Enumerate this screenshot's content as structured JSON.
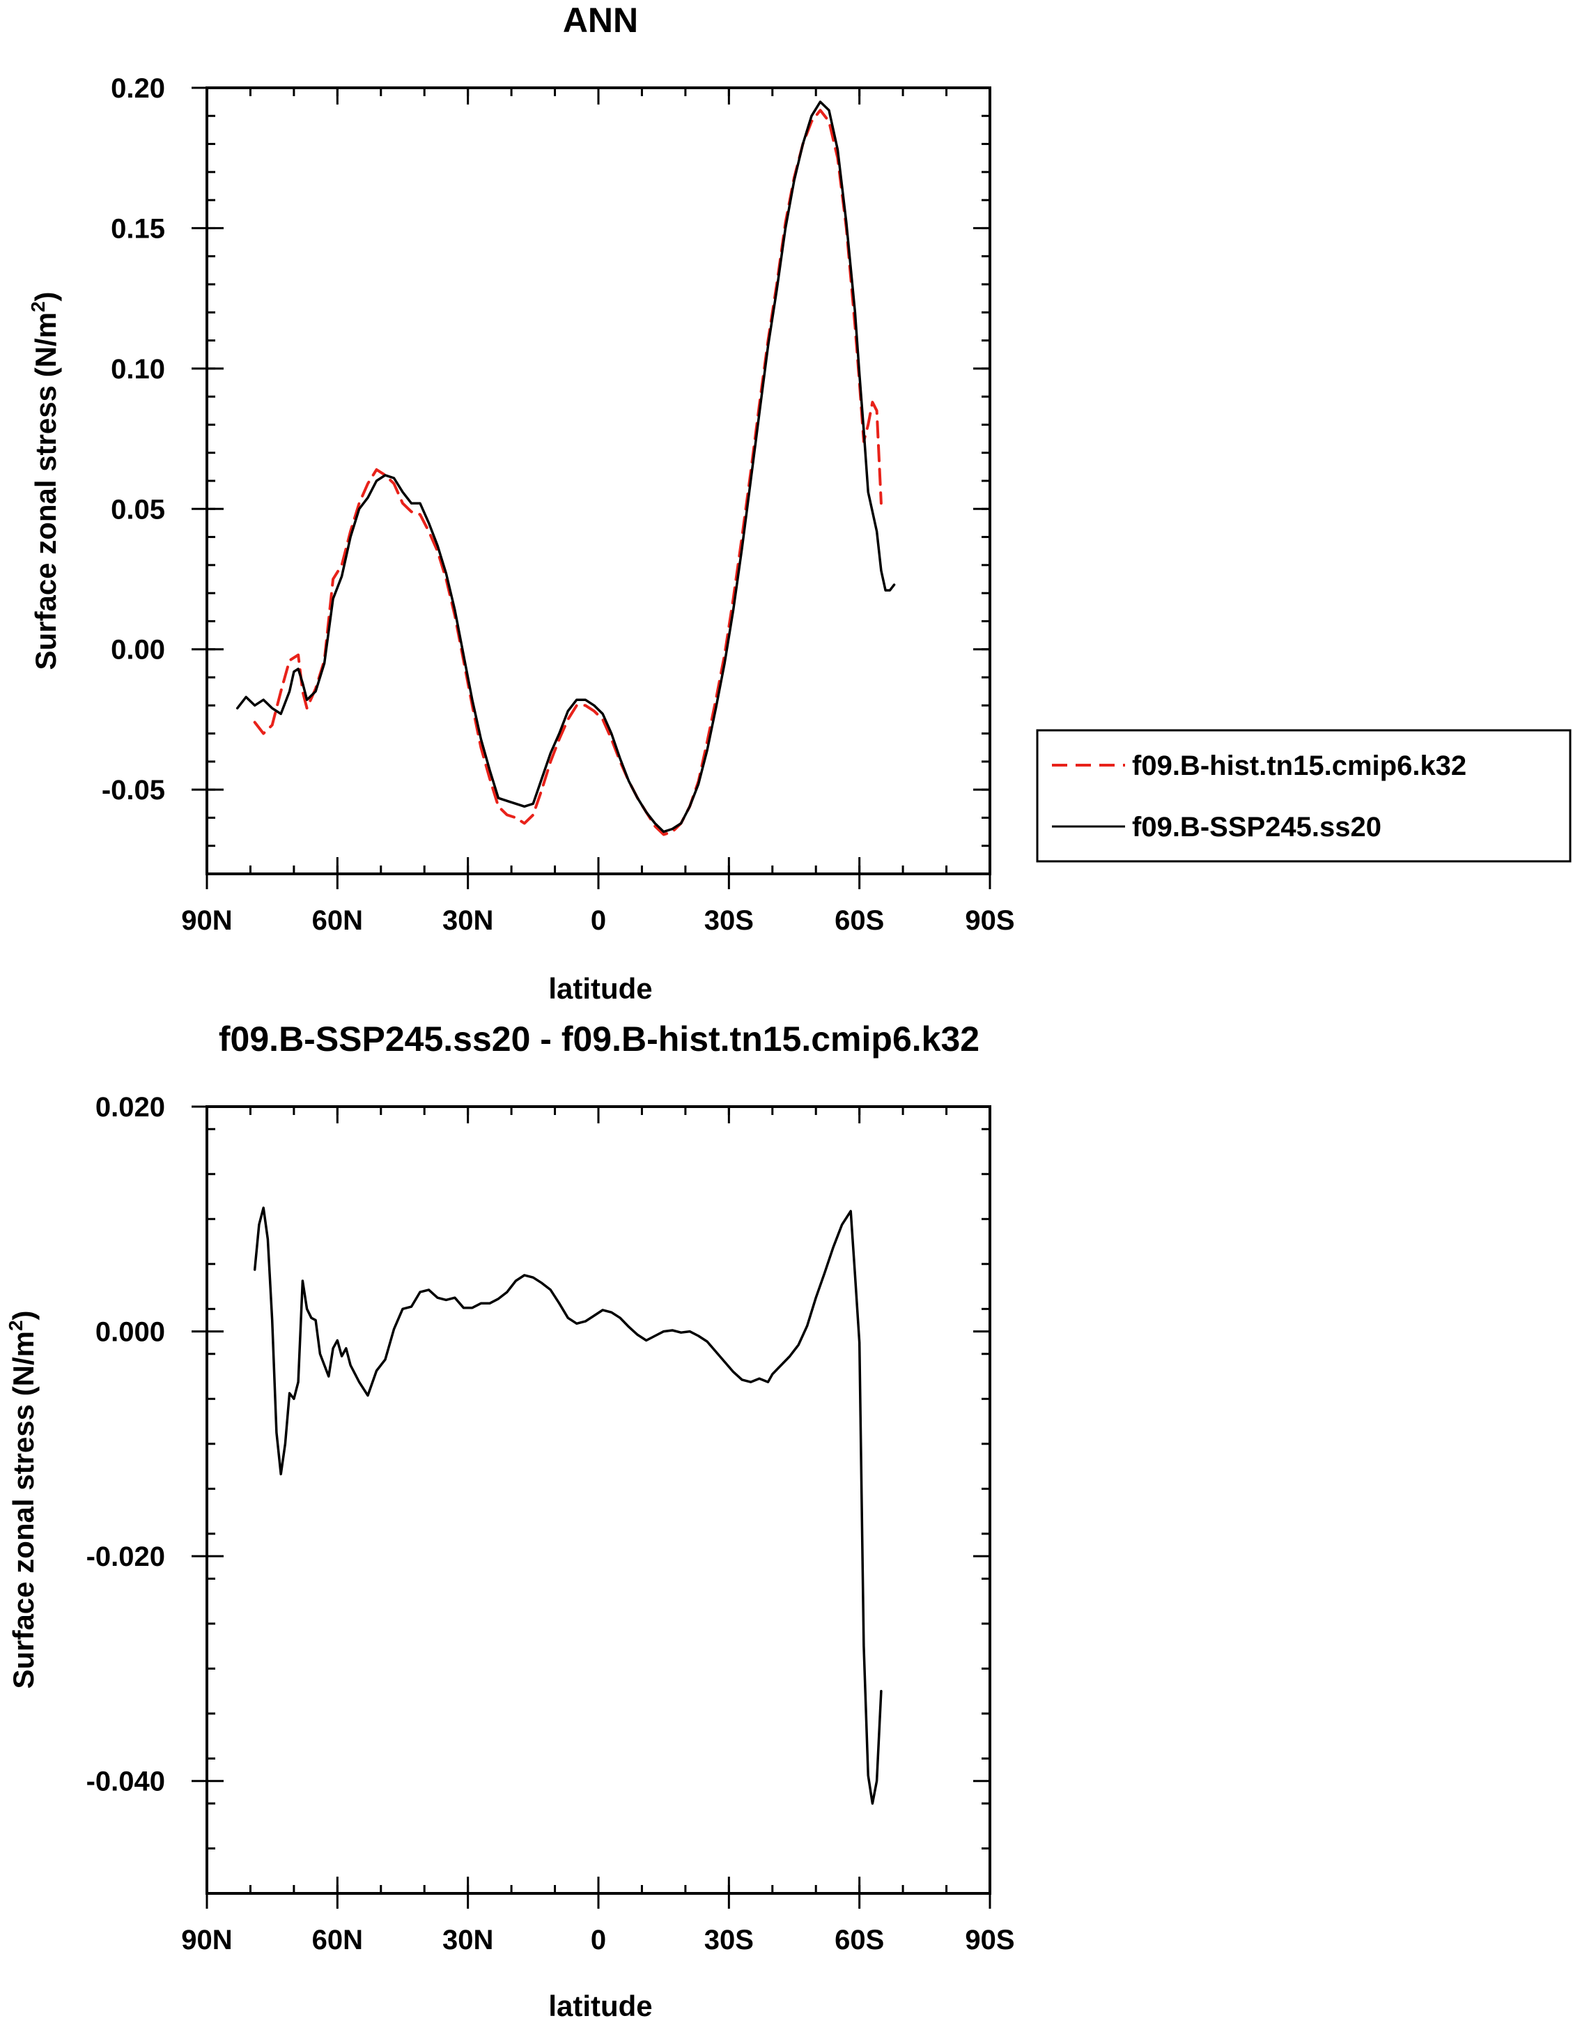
{
  "chart_data": [
    {
      "type": "line",
      "title": "ANN",
      "xlabel": "latitude",
      "ylabel": "Surface zonal stress (N/m²)",
      "ylabel_main": "Surface zonal stress (N/m",
      "ylabel_sup": "2",
      "ylabel_close": ")",
      "xlim": [
        90,
        -90
      ],
      "ylim": [
        -0.08,
        0.2
      ],
      "x_ticks": [
        90,
        60,
        30,
        0,
        -30,
        -60,
        -90
      ],
      "x_tick_labels": [
        "90N",
        "60N",
        "30N",
        "0",
        "30S",
        "60S",
        "90S"
      ],
      "y_ticks": [
        -0.05,
        0.0,
        0.05,
        0.1,
        0.15,
        0.2
      ],
      "y_tick_labels": [
        "-0.05",
        "0.00",
        "0.05",
        "0.10",
        "0.15",
        "0.20"
      ],
      "legend": [
        "f09.B-hist.tn15.cmip6.k32",
        "f09.B-SSP245.ss20"
      ],
      "series": [
        {
          "name": "f09.B-hist.tn15.cmip6.k32",
          "color": "#e8221a",
          "dash": true,
          "points": [
            [
              79,
              -0.026
            ],
            [
              77,
              -0.03
            ],
            [
              75,
              -0.027
            ],
            [
              73,
              -0.015
            ],
            [
              71,
              -0.004
            ],
            [
              69,
              -0.002
            ],
            [
              68,
              -0.015
            ],
            [
              67,
              -0.021
            ],
            [
              65,
              -0.014
            ],
            [
              63,
              -0.004
            ],
            [
              61,
              0.025
            ],
            [
              59,
              0.03
            ],
            [
              57,
              0.042
            ],
            [
              55,
              0.052
            ],
            [
              53,
              0.059
            ],
            [
              51,
              0.064
            ],
            [
              49,
              0.062
            ],
            [
              47,
              0.059
            ],
            [
              45,
              0.052
            ],
            [
              43,
              0.049
            ],
            [
              41,
              0.048
            ],
            [
              39,
              0.042
            ],
            [
              37,
              0.035
            ],
            [
              35,
              0.025
            ],
            [
              33,
              0.012
            ],
            [
              31,
              -0.004
            ],
            [
              29,
              -0.02
            ],
            [
              27,
              -0.035
            ],
            [
              25,
              -0.046
            ],
            [
              23,
              -0.056
            ],
            [
              21,
              -0.059
            ],
            [
              19,
              -0.06
            ],
            [
              17,
              -0.062
            ],
            [
              15,
              -0.059
            ],
            [
              13,
              -0.05
            ],
            [
              11,
              -0.04
            ],
            [
              9,
              -0.032
            ],
            [
              7,
              -0.025
            ],
            [
              5,
              -0.02
            ],
            [
              3,
              -0.02
            ],
            [
              1,
              -0.022
            ],
            [
              -1,
              -0.025
            ],
            [
              -3,
              -0.032
            ],
            [
              -5,
              -0.04
            ],
            [
              -7,
              -0.047
            ],
            [
              -9,
              -0.053
            ],
            [
              -11,
              -0.058
            ],
            [
              -13,
              -0.063
            ],
            [
              -15,
              -0.066
            ],
            [
              -17,
              -0.065
            ],
            [
              -19,
              -0.062
            ],
            [
              -21,
              -0.056
            ],
            [
              -23,
              -0.047
            ],
            [
              -25,
              -0.033
            ],
            [
              -27,
              -0.018
            ],
            [
              -29,
              -0.002
            ],
            [
              -31,
              0.018
            ],
            [
              -33,
              0.04
            ],
            [
              -35,
              0.063
            ],
            [
              -37,
              0.087
            ],
            [
              -39,
              0.11
            ],
            [
              -41,
              0.13
            ],
            [
              -43,
              0.152
            ],
            [
              -45,
              0.168
            ],
            [
              -47,
              0.18
            ],
            [
              -49,
              0.188
            ],
            [
              -51,
              0.192
            ],
            [
              -53,
              0.188
            ],
            [
              -55,
              0.175
            ],
            [
              -57,
              0.15
            ],
            [
              -59,
              0.115
            ],
            [
              -60,
              0.095
            ],
            [
              -61,
              0.074
            ],
            [
              -62,
              0.08
            ],
            [
              -63,
              0.088
            ],
            [
              -64,
              0.085
            ],
            [
              -65,
              0.052
            ]
          ]
        },
        {
          "name": "f09.B-SSP245.ss20",
          "color": "#000000",
          "dash": false,
          "points": [
            [
              83,
              -0.021
            ],
            [
              81,
              -0.017
            ],
            [
              79,
              -0.02
            ],
            [
              77,
              -0.018
            ],
            [
              75,
              -0.021
            ],
            [
              73,
              -0.023
            ],
            [
              71,
              -0.015
            ],
            [
              70,
              -0.008
            ],
            [
              69,
              -0.007
            ],
            [
              68,
              -0.012
            ],
            [
              67,
              -0.018
            ],
            [
              65,
              -0.015
            ],
            [
              63,
              -0.005
            ],
            [
              61,
              0.018
            ],
            [
              59,
              0.026
            ],
            [
              57,
              0.04
            ],
            [
              55,
              0.05
            ],
            [
              53,
              0.054
            ],
            [
              51,
              0.06
            ],
            [
              49,
              0.062
            ],
            [
              47,
              0.061
            ],
            [
              45,
              0.056
            ],
            [
              43,
              0.052
            ],
            [
              41,
              0.052
            ],
            [
              39,
              0.045
            ],
            [
              37,
              0.037
            ],
            [
              35,
              0.027
            ],
            [
              33,
              0.014
            ],
            [
              31,
              -0.002
            ],
            [
              29,
              -0.018
            ],
            [
              27,
              -0.032
            ],
            [
              25,
              -0.043
            ],
            [
              23,
              -0.053
            ],
            [
              21,
              -0.054
            ],
            [
              19,
              -0.055
            ],
            [
              17,
              -0.056
            ],
            [
              15,
              -0.055
            ],
            [
              13,
              -0.046
            ],
            [
              11,
              -0.037
            ],
            [
              9,
              -0.03
            ],
            [
              7,
              -0.022
            ],
            [
              5,
              -0.018
            ],
            [
              3,
              -0.018
            ],
            [
              1,
              -0.02
            ],
            [
              -1,
              -0.023
            ],
            [
              -3,
              -0.03
            ],
            [
              -5,
              -0.039
            ],
            [
              -7,
              -0.047
            ],
            [
              -9,
              -0.053
            ],
            [
              -11,
              -0.058
            ],
            [
              -13,
              -0.062
            ],
            [
              -15,
              -0.065
            ],
            [
              -17,
              -0.064
            ],
            [
              -19,
              -0.062
            ],
            [
              -21,
              -0.056
            ],
            [
              -23,
              -0.048
            ],
            [
              -25,
              -0.036
            ],
            [
              -27,
              -0.021
            ],
            [
              -29,
              -0.005
            ],
            [
              -31,
              0.014
            ],
            [
              -33,
              0.036
            ],
            [
              -35,
              0.06
            ],
            [
              -37,
              0.084
            ],
            [
              -39,
              0.108
            ],
            [
              -41,
              0.128
            ],
            [
              -43,
              0.15
            ],
            [
              -45,
              0.167
            ],
            [
              -47,
              0.18
            ],
            [
              -49,
              0.19
            ],
            [
              -51,
              0.195
            ],
            [
              -53,
              0.192
            ],
            [
              -55,
              0.178
            ],
            [
              -57,
              0.152
            ],
            [
              -59,
              0.12
            ],
            [
              -60,
              0.098
            ],
            [
              -61,
              0.078
            ],
            [
              -62,
              0.056
            ],
            [
              -64,
              0.042
            ],
            [
              -65,
              0.028
            ],
            [
              -66,
              0.021
            ],
            [
              -67,
              0.021
            ],
            [
              -68,
              0.023
            ]
          ]
        }
      ]
    },
    {
      "type": "line",
      "title": "f09.B-SSP245.ss20 - f09.B-hist.tn15.cmip6.k32",
      "xlabel": "latitude",
      "ylabel": "Surface zonal stress (N/m²)",
      "ylabel_main": "Surface zonal stress (N/m",
      "ylabel_sup": "2",
      "ylabel_close": ")",
      "xlim": [
        90,
        -90
      ],
      "ylim": [
        -0.05,
        0.02
      ],
      "x_ticks": [
        90,
        60,
        30,
        0,
        -30,
        -60,
        -90
      ],
      "x_tick_labels": [
        "90N",
        "60N",
        "30N",
        "0",
        "30S",
        "60S",
        "90S"
      ],
      "y_ticks": [
        -0.04,
        -0.02,
        0.0,
        0.02
      ],
      "y_tick_labels": [
        "-0.040",
        "-0.020",
        "0.000",
        "0.020"
      ],
      "series": [
        {
          "name": "f09.B-SSP245.ss20 - f09.B-hist.tn15.cmip6.k32",
          "color": "#000000",
          "dash": false,
          "points": [
            [
              79,
              0.0055
            ],
            [
              78,
              0.0095
            ],
            [
              77,
              0.011
            ],
            [
              76,
              0.0082
            ],
            [
              75,
              0.001
            ],
            [
              74,
              -0.009
            ],
            [
              73,
              -0.0127
            ],
            [
              72,
              -0.01
            ],
            [
              71,
              -0.0055
            ],
            [
              70,
              -0.006
            ],
            [
              69,
              -0.0045
            ],
            [
              68,
              0.0045
            ],
            [
              67,
              0.002
            ],
            [
              66,
              0.0012
            ],
            [
              65,
              0.001
            ],
            [
              64,
              -0.002
            ],
            [
              62,
              -0.004
            ],
            [
              61,
              -0.0015
            ],
            [
              60,
              -0.0008
            ],
            [
              59,
              -0.0022
            ],
            [
              58,
              -0.0015
            ],
            [
              57,
              -0.003
            ],
            [
              55,
              -0.0045
            ],
            [
              53,
              -0.0057
            ],
            [
              51,
              -0.0035
            ],
            [
              49,
              -0.0025
            ],
            [
              47,
              0.0002
            ],
            [
              45,
              0.002
            ],
            [
              43,
              0.0022
            ],
            [
              41,
              0.0035
            ],
            [
              39,
              0.0037
            ],
            [
              37,
              0.003
            ],
            [
              35,
              0.0028
            ],
            [
              33,
              0.003
            ],
            [
              31,
              0.0021
            ],
            [
              29,
              0.0021
            ],
            [
              27,
              0.0025
            ],
            [
              25,
              0.0025
            ],
            [
              23,
              0.0029
            ],
            [
              21,
              0.0035
            ],
            [
              19,
              0.0045
            ],
            [
              17,
              0.005
            ],
            [
              15,
              0.0048
            ],
            [
              13,
              0.0043
            ],
            [
              11,
              0.0037
            ],
            [
              9,
              0.0025
            ],
            [
              7,
              0.0012
            ],
            [
              5,
              0.0007
            ],
            [
              3,
              0.0009
            ],
            [
              1,
              0.0014
            ],
            [
              -1,
              0.0019
            ],
            [
              -3,
              0.0017
            ],
            [
              -5,
              0.0012
            ],
            [
              -7,
              0.0004
            ],
            [
              -9,
              -0.0003
            ],
            [
              -11,
              -0.0008
            ],
            [
              -13,
              -0.0004
            ],
            [
              -15,
              0.0
            ],
            [
              -17,
              0.0001
            ],
            [
              -19,
              -0.0001
            ],
            [
              -21,
              0.0
            ],
            [
              -23,
              -0.0004
            ],
            [
              -25,
              -0.0009
            ],
            [
              -27,
              -0.0018
            ],
            [
              -29,
              -0.0027
            ],
            [
              -31,
              -0.0036
            ],
            [
              -33,
              -0.0043
            ],
            [
              -35,
              -0.0045
            ],
            [
              -37,
              -0.0042
            ],
            [
              -39,
              -0.0045
            ],
            [
              -40,
              -0.0038
            ],
            [
              -42,
              -0.003
            ],
            [
              -44,
              -0.0022
            ],
            [
              -46,
              -0.0012
            ],
            [
              -48,
              0.0005
            ],
            [
              -50,
              0.003
            ],
            [
              -52,
              0.0052
            ],
            [
              -54,
              0.0075
            ],
            [
              -56,
              0.0095
            ],
            [
              -58,
              0.0107
            ],
            [
              -59,
              0.005
            ],
            [
              -60,
              -0.001
            ],
            [
              -61,
              -0.028
            ],
            [
              -62,
              -0.0395
            ],
            [
              -63,
              -0.042
            ],
            [
              -64,
              -0.04
            ],
            [
              -65,
              -0.032
            ]
          ]
        }
      ]
    }
  ]
}
